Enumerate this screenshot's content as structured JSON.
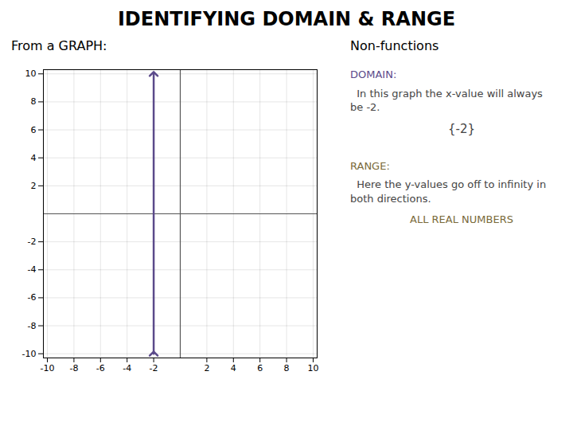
{
  "chart_data": {
    "type": "line",
    "title": "IDENTIFYING DOMAIN & RANGE",
    "subtitle": "From a GRAPH:",
    "x": [
      -2,
      -2
    ],
    "values": [
      -10,
      10
    ],
    "color": "#5b4a8a",
    "xlim": [
      -10.3,
      10.3
    ],
    "ylim": [
      -10.3,
      10.3
    ],
    "xticks": [
      -10,
      -8,
      -6,
      -4,
      -2,
      2,
      4,
      6,
      8,
      10
    ],
    "yticks": [
      -10,
      -8,
      -6,
      -4,
      -2,
      2,
      4,
      6,
      8,
      10
    ],
    "grid": true,
    "annotations": [
      {
        "text": "Non-functions",
        "color": "#000000"
      },
      {
        "text": "DOMAIN:",
        "color": "#5b4a8a"
      },
      {
        "text": "  In this graph the x-value will always",
        "color": "#444444"
      },
      {
        "text": "be -2.",
        "color": "#444444"
      },
      {
        "text": "{-2}",
        "color": "#444444"
      },
      {
        "text": "RANGE:",
        "color": "#7a6a3a"
      },
      {
        "text": "  Here the y-values go off to infinity in",
        "color": "#444444"
      },
      {
        "text": "both directions.",
        "color": "#444444"
      },
      {
        "text": "ALL REAL NUMBERS",
        "color": "#7a6a3a"
      }
    ]
  }
}
